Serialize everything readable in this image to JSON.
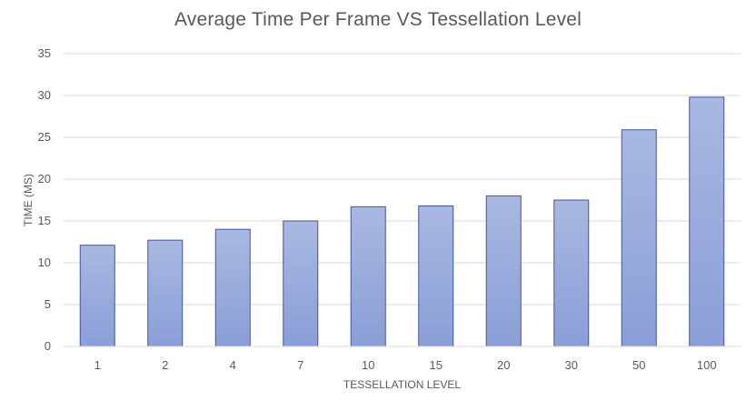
{
  "chart_data": {
    "type": "bar",
    "title": "Average Time Per Frame VS  Tessellation Level",
    "xlabel": "TESSELLATION LEVEL",
    "ylabel": "TIME (MS)",
    "categories": [
      "1",
      "2",
      "4",
      "7",
      "10",
      "15",
      "20",
      "30",
      "50",
      "100"
    ],
    "values": [
      12.1,
      12.7,
      14.0,
      15.0,
      16.7,
      16.8,
      18.0,
      17.5,
      25.9,
      29.8
    ],
    "ylim": [
      0,
      35
    ],
    "yticks": [
      "0",
      "5",
      "10",
      "15",
      "20",
      "25",
      "30",
      "35"
    ],
    "grid": true,
    "legend": "none",
    "colors": {
      "bar_top": "#a9b8e0",
      "bar_bottom": "#8a9fd8",
      "bar_border": "#3f55a5",
      "grid": "#d9d9d9"
    }
  }
}
